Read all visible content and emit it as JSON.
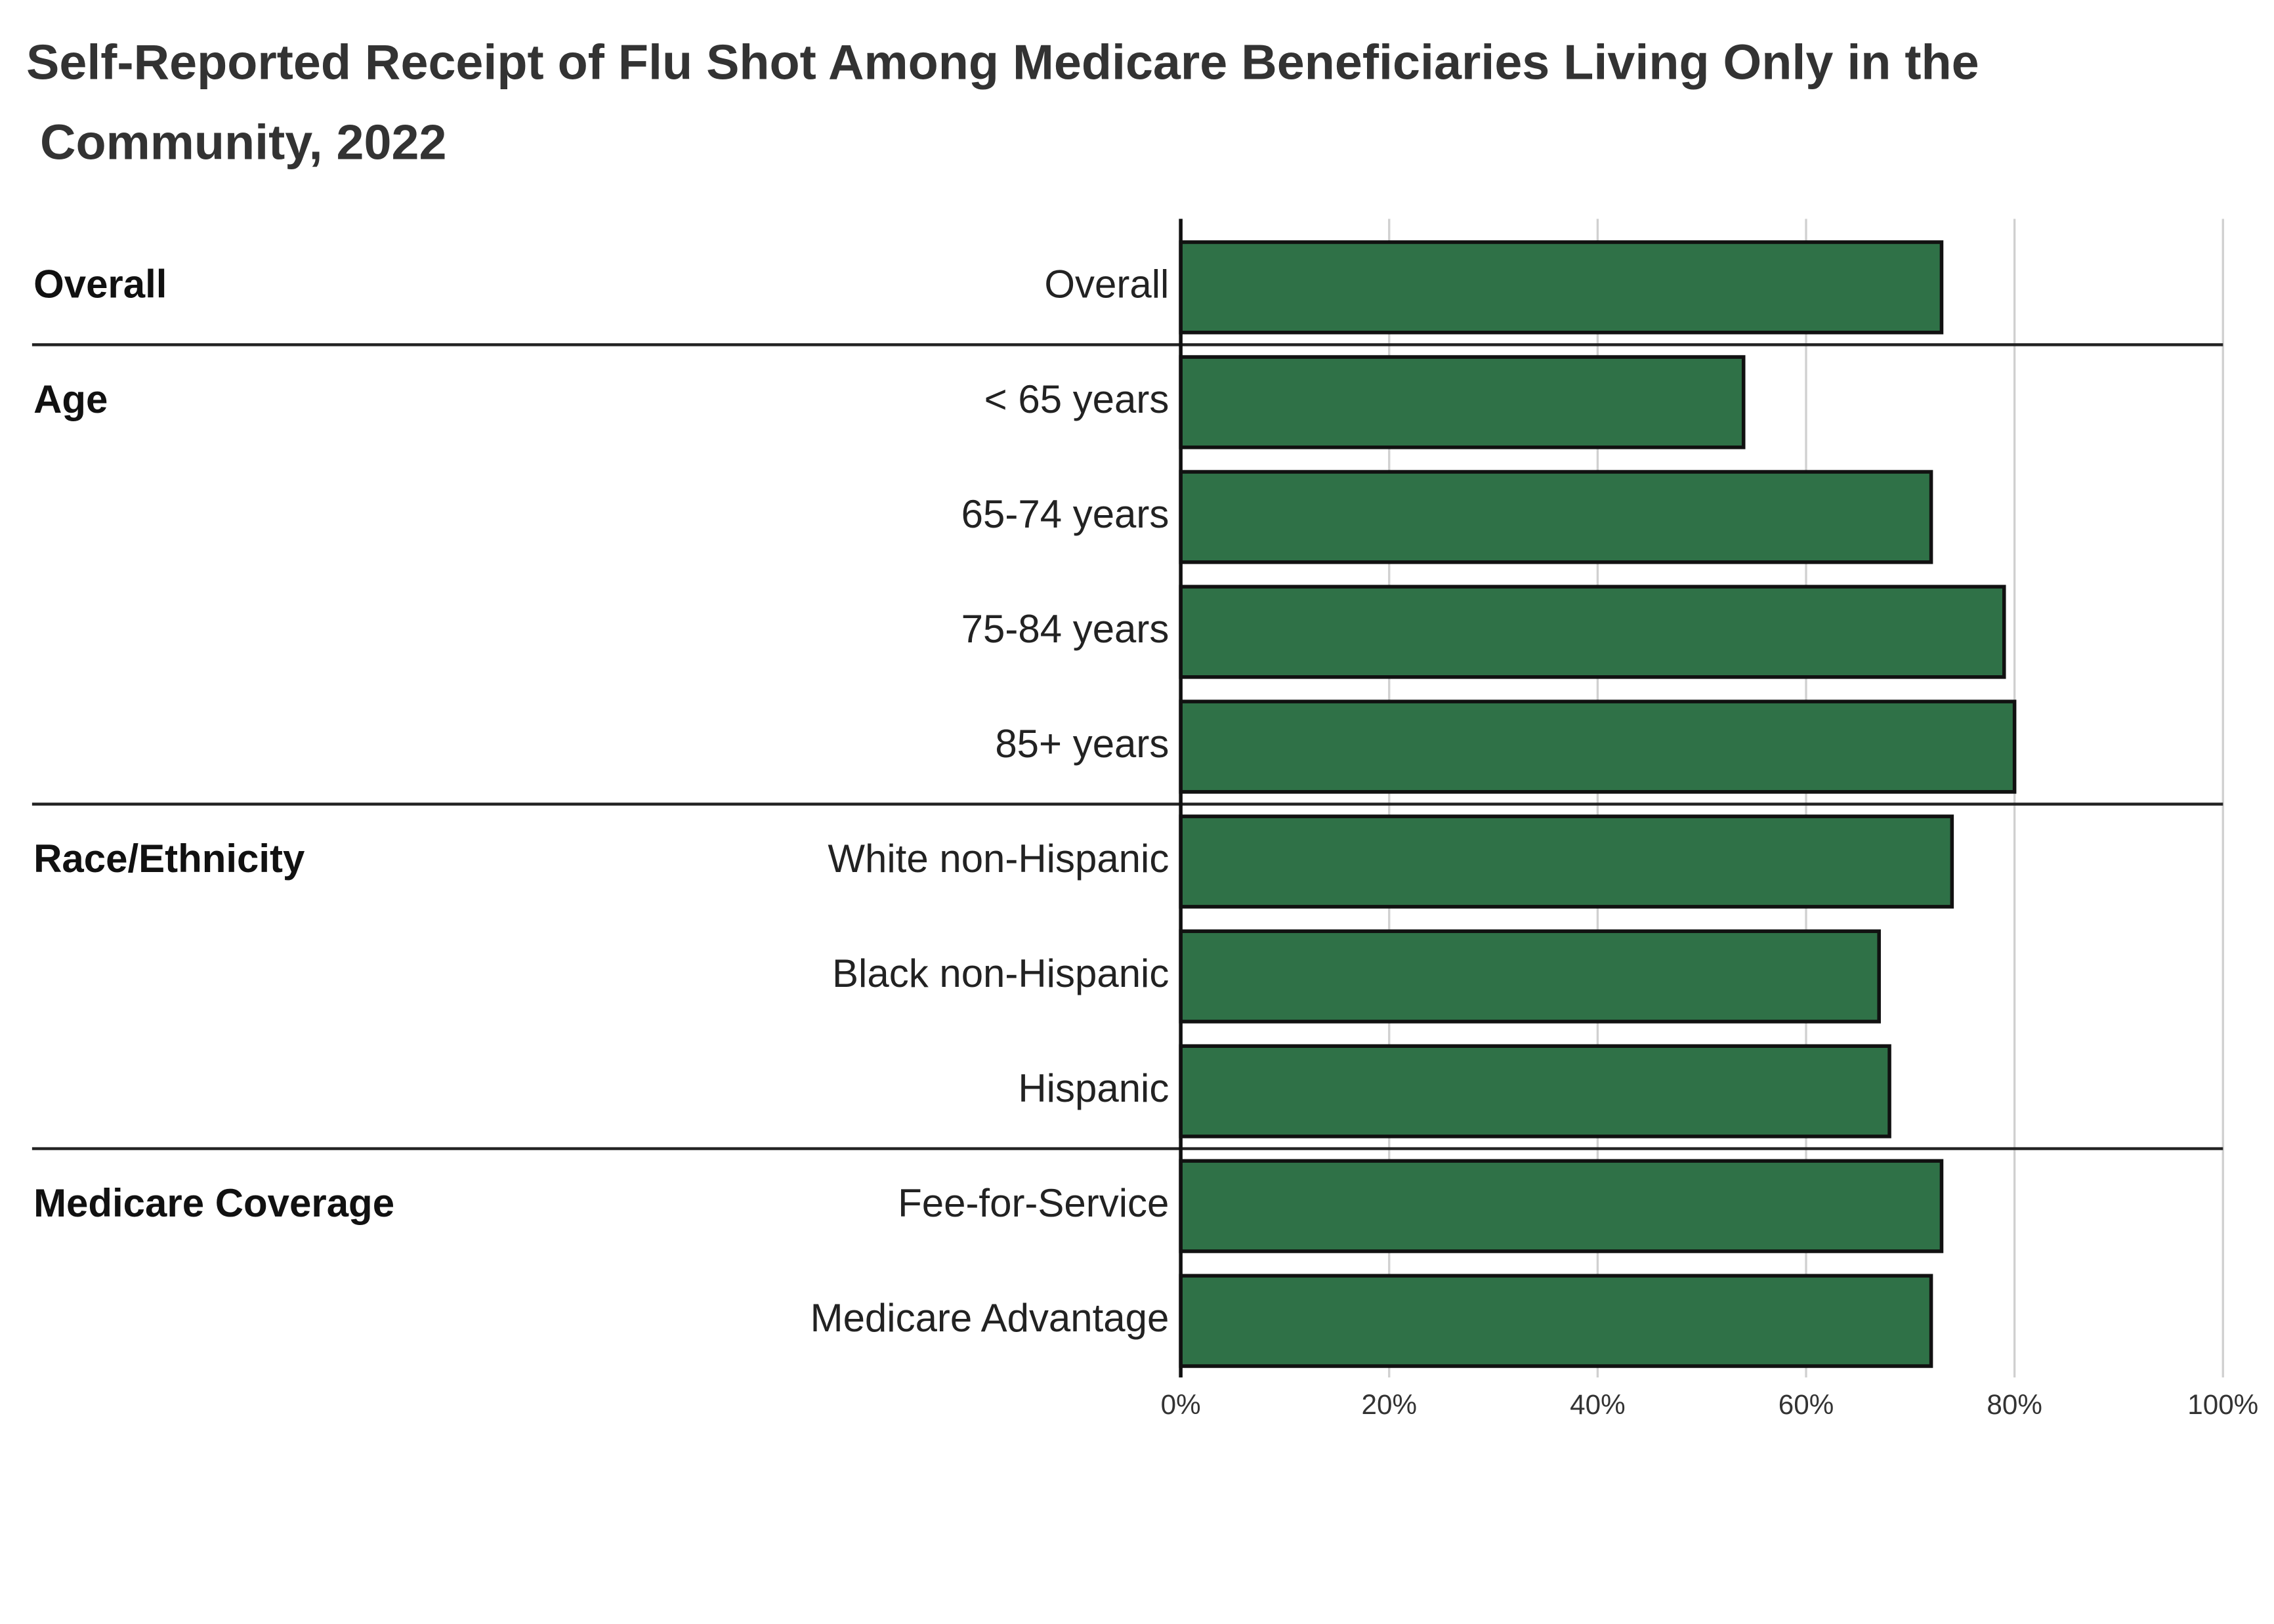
{
  "chart_data": {
    "type": "bar",
    "orientation": "horizontal",
    "title": "Self-Reported Receipt of Flu Shot Among Medicare Beneficiaries Living Only in the Community, 2022",
    "categories": [
      "Overall",
      "< 65 years",
      "65-74 years",
      "75-84 years",
      "85+ years",
      "White non-Hispanic",
      "Black non-Hispanic",
      "Hispanic",
      "Fee-for-Service",
      "Medicare Advantage"
    ],
    "groups": [
      "Overall",
      "Age",
      null,
      null,
      null,
      "Race/Ethnicity",
      null,
      null,
      "Medicare Coverage",
      null
    ],
    "values": [
      73,
      54,
      72,
      79,
      80,
      74,
      67,
      68,
      73,
      72
    ],
    "color": "#2f7147",
    "xlim": [
      0,
      100
    ],
    "xticks": [
      {
        "value": 0,
        "label": "0%"
      },
      {
        "value": 20,
        "label": "20%"
      },
      {
        "value": 40,
        "label": "40%"
      },
      {
        "value": 60,
        "label": "60%"
      },
      {
        "value": 80,
        "label": "80%"
      },
      {
        "value": 100,
        "label": "100%"
      }
    ],
    "grid": true
  }
}
